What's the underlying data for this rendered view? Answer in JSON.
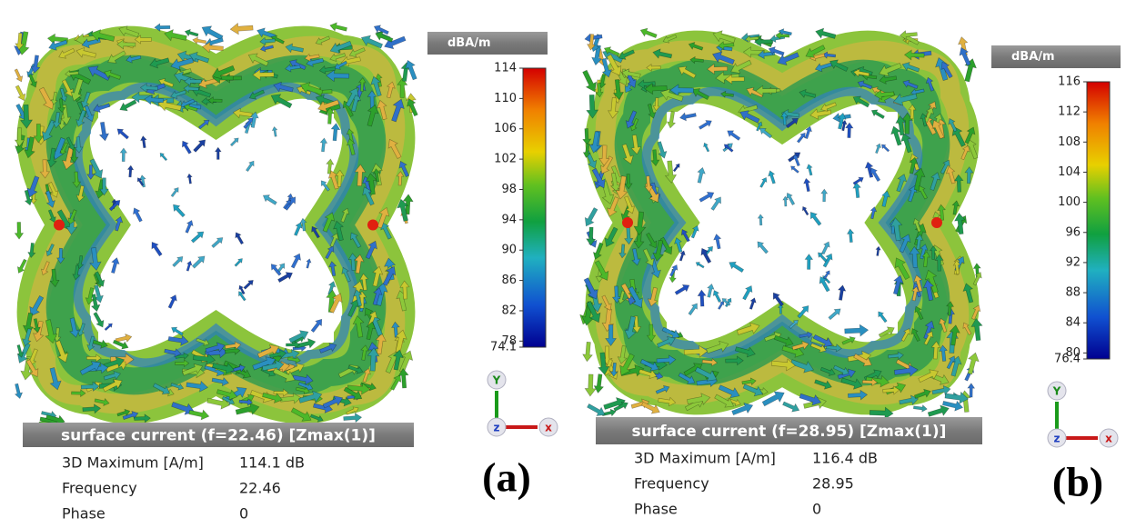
{
  "panels": [
    {
      "colorbar": {
        "unit": "dBA/m",
        "ticks": [
          114,
          110,
          106,
          102,
          98,
          94,
          90,
          86,
          82,
          78,
          74.1
        ]
      },
      "caption": "surface current (f=22.46) [Zmax(1)]",
      "info": [
        [
          "3D Maximum [A/m]",
          "114.1 dB"
        ],
        [
          "Frequency",
          "22.46"
        ],
        [
          "Phase",
          "0"
        ]
      ],
      "axes": {
        "y": "Y",
        "z": "z",
        "x": "x"
      },
      "label": "(a)"
    },
    {
      "colorbar": {
        "unit": "dBA/m",
        "ticks": [
          116,
          112,
          108,
          104,
          100,
          96,
          92,
          88,
          84,
          80,
          76.4
        ]
      },
      "caption": "surface current (f=28.95) [Zmax(1)]",
      "info": [
        [
          "3D Maximum [A/m]",
          "116.4 dB"
        ],
        [
          "Frequency",
          "28.95"
        ],
        [
          "Phase",
          "0"
        ]
      ],
      "axes": {
        "y": "Y",
        "z": "z",
        "x": "x"
      },
      "label": "(b)"
    }
  ]
}
